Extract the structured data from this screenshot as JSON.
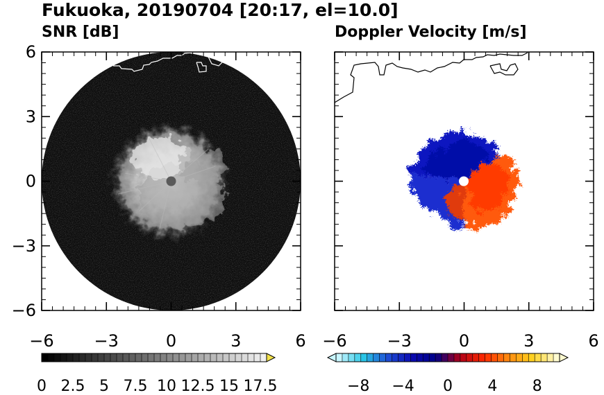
{
  "title": "Fukuoka, 20190704 [20:17, el=10.0]",
  "chart_data": [
    {
      "type": "heatmap",
      "title": "SNR [dB]",
      "xlim": [
        -6,
        6
      ],
      "ylim": [
        -6,
        6
      ],
      "xticks": [
        "−6",
        "−3",
        "0",
        "3",
        "6"
      ],
      "yticks": [
        "6",
        "3",
        "0",
        "−3",
        "−6"
      ],
      "colorbar": {
        "range": [
          0,
          18
        ],
        "labels": [
          "0",
          "2.5",
          "5",
          "7.5",
          "10",
          "12.5",
          "15",
          "17.5"
        ],
        "colors": [
          "#000000",
          "#ffffff"
        ],
        "extend": "max",
        "extend_color": "#f2e14a"
      },
      "features": {
        "scan_radius_km": 6,
        "echo_radius_km": 2.5,
        "background_level": "noise, 0-2 dB",
        "echo_level": "8-14 dB",
        "coastline_color": "#ffffff"
      }
    },
    {
      "type": "heatmap",
      "title": "Doppler Velocity [m/s]",
      "xlim": [
        -6,
        6
      ],
      "ylim": [
        -6,
        6
      ],
      "xticks": [
        "−6",
        "−3",
        "0",
        "3",
        "6"
      ],
      "colorbar": {
        "range": [
          -10,
          10
        ],
        "labels": [
          "−8",
          "−4",
          "0",
          "4",
          "8"
        ],
        "colors": [
          "#c8f6ff",
          "#29c7e6",
          "#1f4fd6",
          "#0a0ab0",
          "#000088",
          "#b00018",
          "#ff2a00",
          "#ff8a10",
          "#ffd21f",
          "#fffbd0"
        ],
        "extend": "both"
      },
      "features": {
        "echo_radius_km": 2.5,
        "negative_side": "north-west (blue)",
        "positive_side": "south-east (red-orange)",
        "coastline_color": "#000000"
      }
    }
  ],
  "colors": {
    "background": "#ffffff",
    "axis": "#000000",
    "snr_disk": "#0e0e0e"
  }
}
